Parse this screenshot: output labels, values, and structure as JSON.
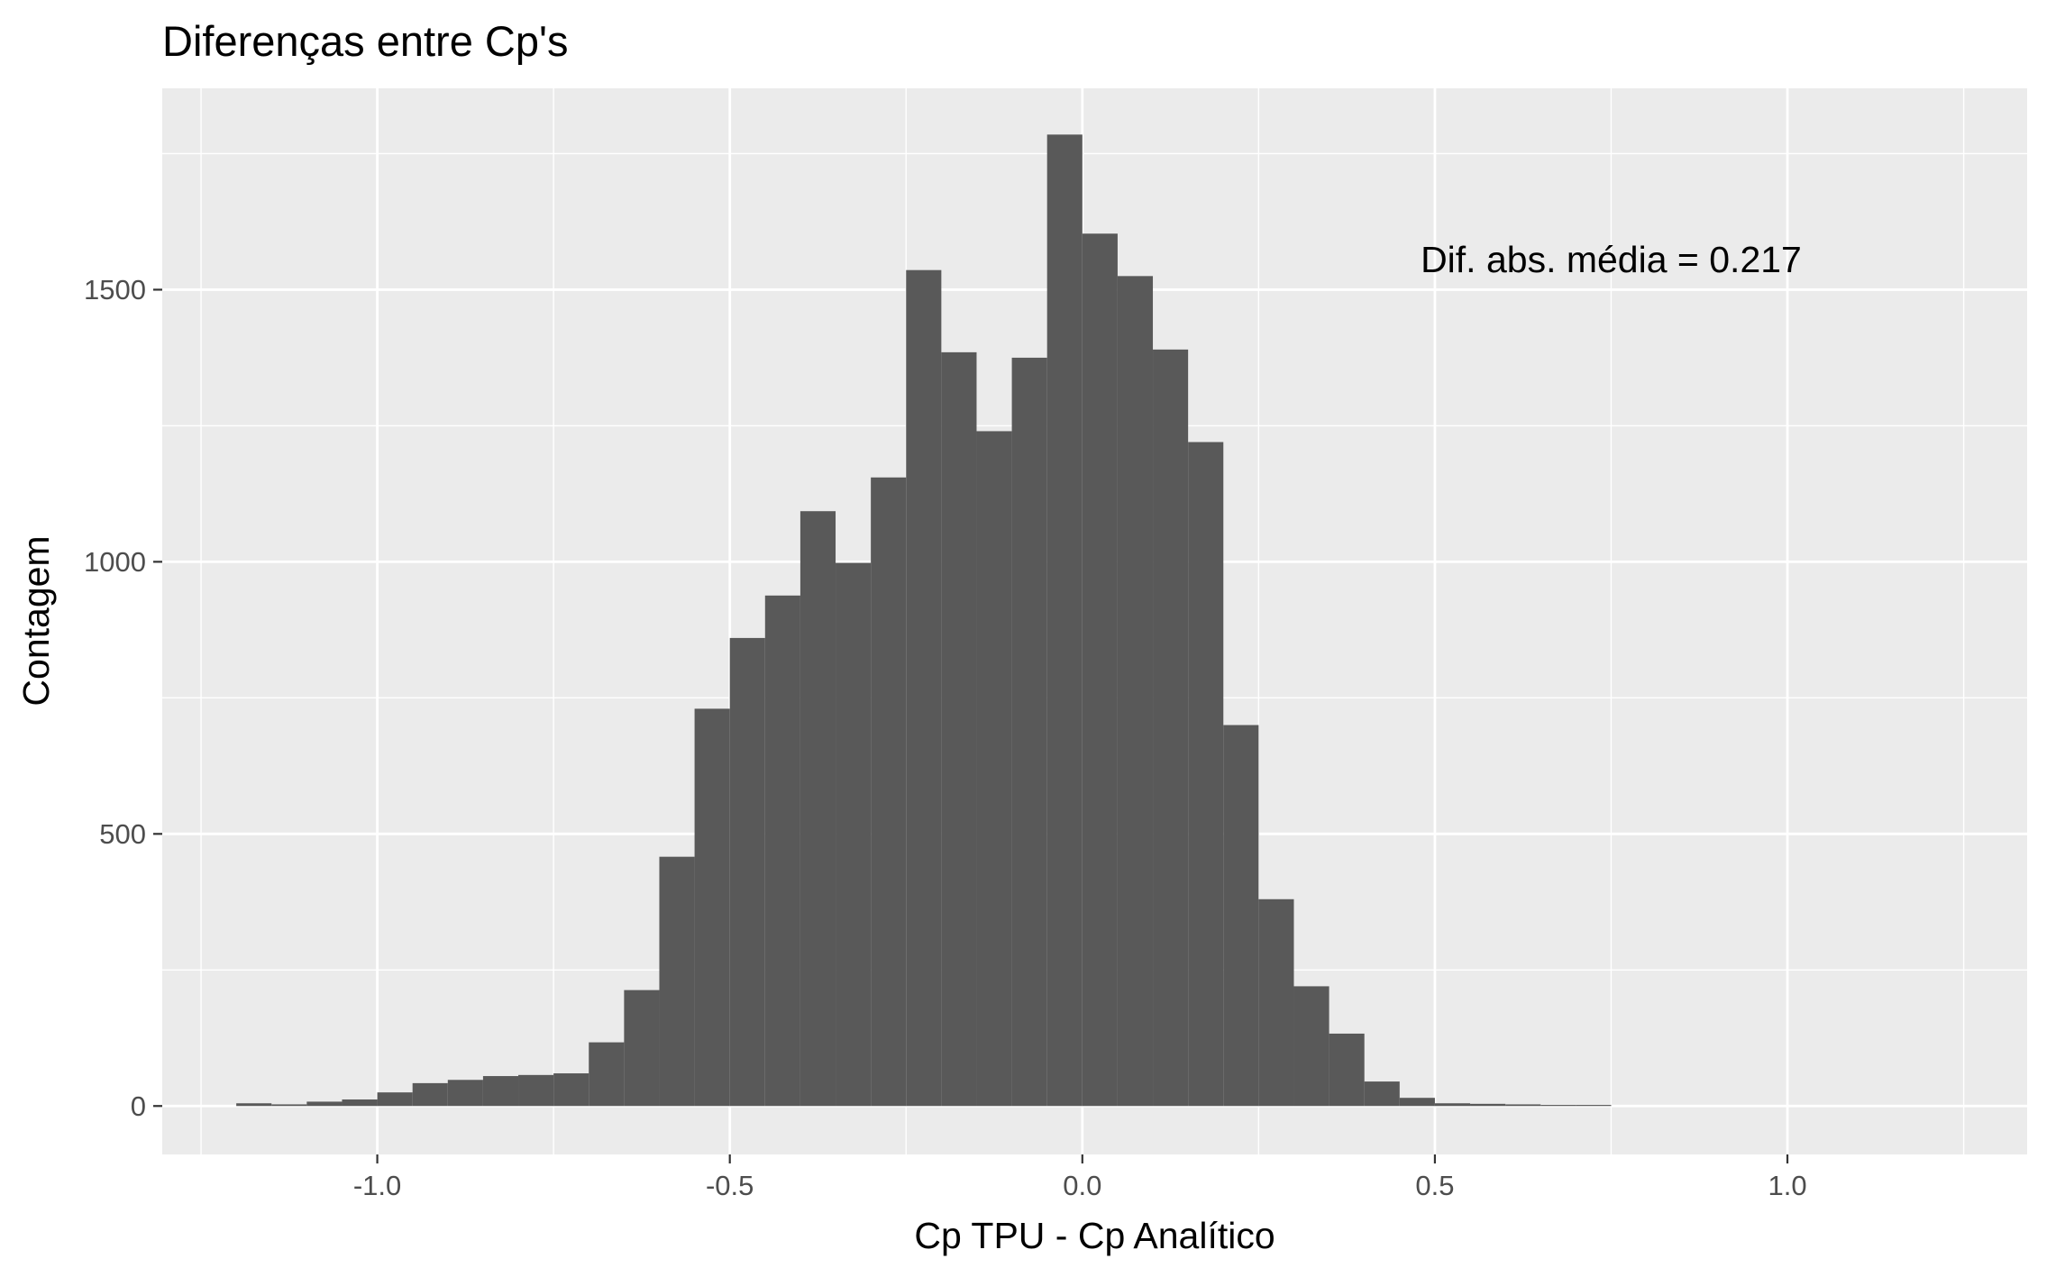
{
  "colors": {
    "panel_background": "#EBEBEB",
    "grid_major": "#FFFFFF",
    "bar_fill": "#595959",
    "tick_color": "#333333",
    "tick_label_color": "#4D4D4D",
    "text_color": "#000000"
  },
  "chart_data": {
    "type": "bar",
    "title": "Diferenças entre Cp's",
    "xlabel": "Cp TPU - Cp Analítico",
    "ylabel": "Contagem",
    "xlim": [
      -1.305,
      1.34
    ],
    "ylim": [
      -89,
      1870
    ],
    "x_ticks": [
      -1.0,
      -0.5,
      0.0,
      0.5,
      1.0
    ],
    "x_tick_labels": [
      "-1.0",
      "-0.5",
      "0.0",
      "0.5",
      "1.0"
    ],
    "y_ticks": [
      0,
      500,
      1000,
      1500
    ],
    "y_tick_labels": [
      "0",
      "500",
      "1000",
      "1500"
    ],
    "grid": true,
    "bin_width": 0.05,
    "bins": [
      {
        "x": -1.175,
        "value": 5
      },
      {
        "x": -1.125,
        "value": 3
      },
      {
        "x": -1.075,
        "value": 8
      },
      {
        "x": -1.025,
        "value": 12
      },
      {
        "x": -0.975,
        "value": 25
      },
      {
        "x": -0.925,
        "value": 42
      },
      {
        "x": -0.875,
        "value": 48
      },
      {
        "x": -0.825,
        "value": 55
      },
      {
        "x": -0.775,
        "value": 57
      },
      {
        "x": -0.725,
        "value": 60
      },
      {
        "x": -0.675,
        "value": 117
      },
      {
        "x": -0.625,
        "value": 213
      },
      {
        "x": -0.575,
        "value": 458
      },
      {
        "x": -0.525,
        "value": 730
      },
      {
        "x": -0.475,
        "value": 860
      },
      {
        "x": -0.425,
        "value": 938
      },
      {
        "x": -0.375,
        "value": 1093
      },
      {
        "x": -0.325,
        "value": 998
      },
      {
        "x": -0.275,
        "value": 1155
      },
      {
        "x": -0.225,
        "value": 1536
      },
      {
        "x": -0.175,
        "value": 1385
      },
      {
        "x": -0.125,
        "value": 1240
      },
      {
        "x": -0.075,
        "value": 1375
      },
      {
        "x": -0.025,
        "value": 1785
      },
      {
        "x": 0.025,
        "value": 1603
      },
      {
        "x": 0.075,
        "value": 1525
      },
      {
        "x": 0.125,
        "value": 1390
      },
      {
        "x": 0.175,
        "value": 1220
      },
      {
        "x": 0.225,
        "value": 700
      },
      {
        "x": 0.275,
        "value": 380
      },
      {
        "x": 0.325,
        "value": 220
      },
      {
        "x": 0.375,
        "value": 133
      },
      {
        "x": 0.425,
        "value": 45
      },
      {
        "x": 0.475,
        "value": 15
      },
      {
        "x": 0.525,
        "value": 5
      },
      {
        "x": 0.575,
        "value": 4
      },
      {
        "x": 0.625,
        "value": 3
      },
      {
        "x": 0.675,
        "value": 2
      },
      {
        "x": 0.725,
        "value": 2
      }
    ],
    "annotations": [
      {
        "text": "Dif. abs. média = 0.217",
        "x": 0.75,
        "y": 1550
      }
    ]
  }
}
